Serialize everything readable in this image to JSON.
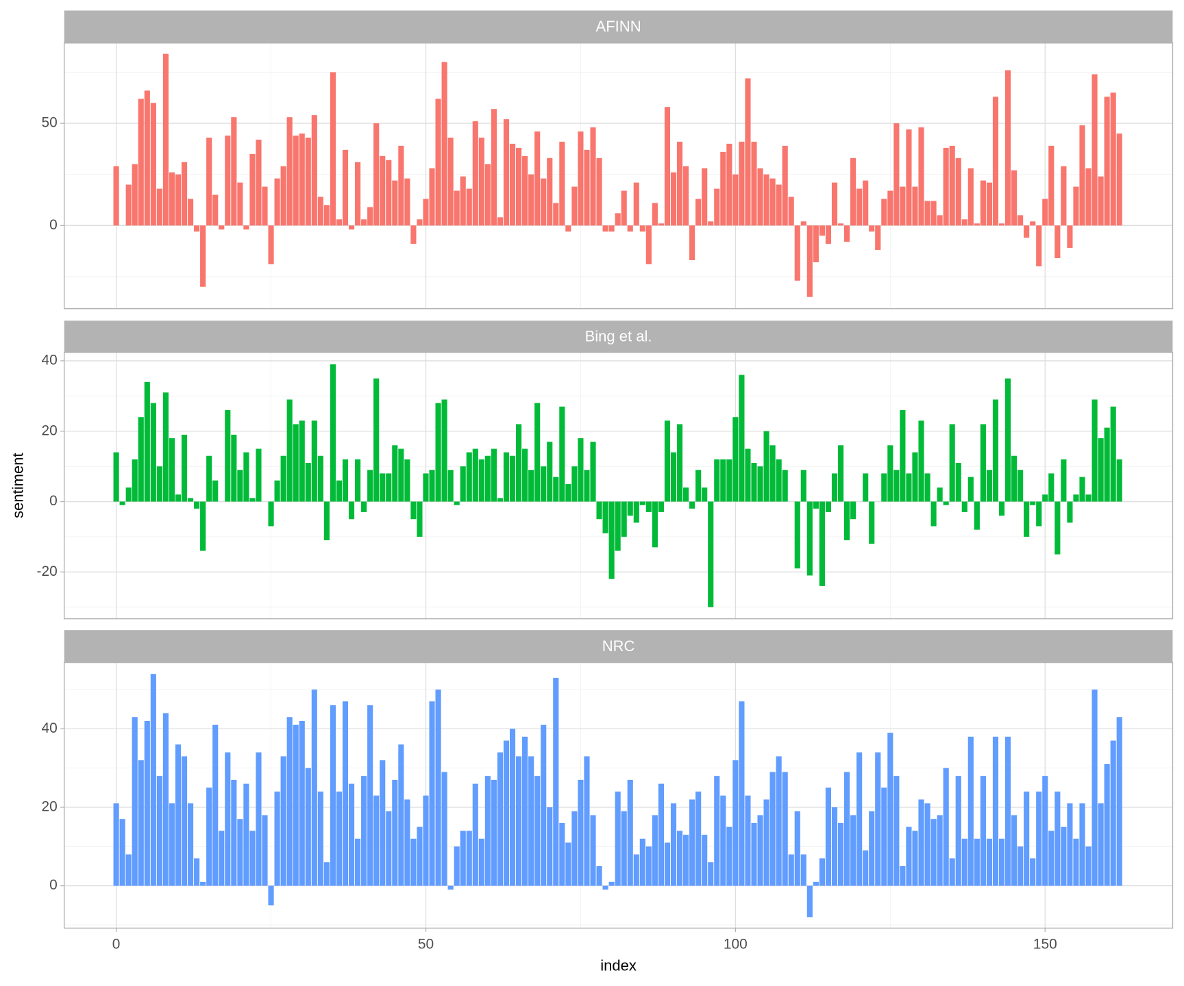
{
  "chart_data": [
    {
      "type": "bar",
      "title": "AFINN",
      "color": "#F8766D",
      "x": [
        0,
        1,
        2,
        3,
        4,
        5,
        6,
        7,
        8,
        9,
        10,
        11,
        12,
        13,
        14,
        15,
        16,
        17,
        18,
        19,
        20,
        21,
        22,
        23,
        24,
        25,
        26,
        27,
        28,
        29,
        30,
        31,
        32,
        33,
        34,
        35,
        36,
        37,
        38,
        39,
        40,
        41,
        42,
        43,
        44,
        45,
        46,
        47,
        48,
        49,
        50,
        51,
        52,
        53,
        54,
        55,
        56,
        57,
        58,
        59,
        60,
        61,
        62,
        63,
        64,
        65,
        66,
        67,
        68,
        69,
        70,
        71,
        72,
        73,
        74,
        75,
        76,
        77,
        78,
        79,
        80,
        81,
        82,
        83,
        84,
        85,
        86,
        87,
        88,
        89,
        90,
        91,
        92,
        93,
        94,
        95,
        96,
        97,
        98,
        99,
        100,
        101,
        102,
        103,
        104,
        105,
        106,
        107,
        108,
        109,
        110,
        111,
        112,
        113,
        114,
        115,
        116,
        117,
        118,
        119,
        120,
        121,
        122,
        123,
        124,
        125,
        126,
        127,
        128,
        129,
        130,
        131,
        132,
        133,
        134,
        135,
        136,
        137,
        138,
        139,
        140,
        141,
        142,
        143,
        144,
        145,
        146,
        147,
        148,
        149,
        150,
        151,
        152,
        153,
        154,
        155,
        156,
        157,
        158,
        159,
        160,
        161,
        162
      ],
      "values": [
        29,
        0,
        20,
        30,
        62,
        66,
        60,
        18,
        84,
        26,
        25,
        31,
        13,
        -3,
        -30,
        43,
        15,
        -2,
        44,
        53,
        21,
        -2,
        35,
        42,
        19,
        -19,
        23,
        29,
        53,
        44,
        45,
        43,
        54,
        14,
        10,
        75,
        3,
        37,
        -2,
        31,
        3,
        9,
        50,
        34,
        32,
        22,
        39,
        23,
        -9,
        3,
        13,
        28,
        62,
        80,
        43,
        17,
        24,
        18,
        51,
        43,
        30,
        57,
        4,
        52,
        40,
        38,
        34,
        25,
        46,
        23,
        33,
        11,
        41,
        -3,
        19,
        46,
        37,
        48,
        33,
        -3,
        -3,
        6,
        17,
        -3,
        21,
        -3,
        -19,
        11,
        1,
        58,
        26,
        41,
        29,
        -17,
        13,
        28,
        2,
        18,
        36,
        40,
        25,
        41,
        72,
        41,
        28,
        25,
        23,
        20,
        39,
        14,
        -27,
        2,
        -35,
        -18,
        -5,
        -9,
        21,
        1,
        -8,
        33,
        18,
        22,
        -3,
        -12,
        13,
        17,
        50,
        19,
        47,
        19,
        48,
        12,
        12,
        5,
        38,
        39,
        33,
        3,
        28,
        1,
        22,
        21,
        63,
        1,
        76,
        27,
        5,
        -6,
        2,
        -20,
        13,
        39,
        -16,
        29,
        -11,
        19,
        49,
        28,
        74,
        24,
        63,
        65,
        45
      ],
      "ylim": [
        -40.7,
        89.3
      ],
      "yticks": [
        0,
        50
      ],
      "grid": true
    },
    {
      "type": "bar",
      "title": "Bing et al.",
      "color": "#00BA38",
      "ylabel": "sentiment",
      "x": [
        0,
        1,
        2,
        3,
        4,
        5,
        6,
        7,
        8,
        9,
        10,
        11,
        12,
        13,
        14,
        15,
        16,
        17,
        18,
        19,
        20,
        21,
        22,
        23,
        24,
        25,
        26,
        27,
        28,
        29,
        30,
        31,
        32,
        33,
        34,
        35,
        36,
        37,
        38,
        39,
        40,
        41,
        42,
        43,
        44,
        45,
        46,
        47,
        48,
        49,
        50,
        51,
        52,
        53,
        54,
        55,
        56,
        57,
        58,
        59,
        60,
        61,
        62,
        63,
        64,
        65,
        66,
        67,
        68,
        69,
        70,
        71,
        72,
        73,
        74,
        75,
        76,
        77,
        78,
        79,
        80,
        81,
        82,
        83,
        84,
        85,
        86,
        87,
        88,
        89,
        90,
        91,
        92,
        93,
        94,
        95,
        96,
        97,
        98,
        99,
        100,
        101,
        102,
        103,
        104,
        105,
        106,
        107,
        108,
        109,
        110,
        111,
        112,
        113,
        114,
        115,
        116,
        117,
        118,
        119,
        120,
        121,
        122,
        123,
        124,
        125,
        126,
        127,
        128,
        129,
        130,
        131,
        132,
        133,
        134,
        135,
        136,
        137,
        138,
        139,
        140,
        141,
        142,
        143,
        144,
        145,
        146,
        147,
        148,
        149,
        150,
        151,
        152,
        153,
        154,
        155,
        156,
        157,
        158,
        159,
        160,
        161,
        162
      ],
      "values": [
        14,
        -1,
        4,
        12,
        24,
        34,
        28,
        10,
        31,
        18,
        2,
        19,
        1,
        -2,
        -14,
        13,
        6,
        0,
        26,
        19,
        9,
        14,
        1,
        15,
        0,
        -7,
        6,
        13,
        29,
        22,
        23,
        11,
        23,
        13,
        -11,
        39,
        6,
        12,
        -5,
        12,
        -3,
        9,
        35,
        8,
        8,
        16,
        15,
        12,
        -5,
        -10,
        8,
        9,
        28,
        29,
        9,
        -1,
        10,
        14,
        15,
        12,
        13,
        15,
        1,
        14,
        13,
        22,
        15,
        9,
        28,
        10,
        17,
        7,
        27,
        5,
        10,
        18,
        9,
        17,
        -5,
        -9,
        -22,
        -14,
        -10,
        -4,
        -6,
        -1,
        -3,
        -13,
        -3,
        23,
        14,
        22,
        4,
        -2,
        9,
        4,
        -30,
        12,
        12,
        12,
        24,
        36,
        15,
        11,
        10,
        20,
        16,
        12,
        9,
        0,
        -19,
        9,
        -21,
        -2,
        -24,
        -3,
        8,
        16,
        -11,
        -5,
        0,
        8,
        -12,
        0,
        8,
        16,
        9,
        26,
        8,
        14,
        23,
        8,
        -7,
        4,
        -1,
        22,
        11,
        -3,
        7,
        -8,
        22,
        9,
        29,
        -4,
        35,
        13,
        9,
        -10,
        -1,
        -7,
        2,
        8,
        -15,
        12,
        -6,
        2,
        7,
        2,
        29,
        18,
        21,
        27,
        12
      ],
      "ylim": [
        -33.3,
        42.4
      ],
      "yticks": [
        -20,
        0,
        20,
        40
      ],
      "grid": true
    },
    {
      "type": "bar",
      "title": "NRC",
      "color": "#619CFF",
      "xlabel": "index",
      "x": [
        0,
        1,
        2,
        3,
        4,
        5,
        6,
        7,
        8,
        9,
        10,
        11,
        12,
        13,
        14,
        15,
        16,
        17,
        18,
        19,
        20,
        21,
        22,
        23,
        24,
        25,
        26,
        27,
        28,
        29,
        30,
        31,
        32,
        33,
        34,
        35,
        36,
        37,
        38,
        39,
        40,
        41,
        42,
        43,
        44,
        45,
        46,
        47,
        48,
        49,
        50,
        51,
        52,
        53,
        54,
        55,
        56,
        57,
        58,
        59,
        60,
        61,
        62,
        63,
        64,
        65,
        66,
        67,
        68,
        69,
        70,
        71,
        72,
        73,
        74,
        75,
        76,
        77,
        78,
        79,
        80,
        81,
        82,
        83,
        84,
        85,
        86,
        87,
        88,
        89,
        90,
        91,
        92,
        93,
        94,
        95,
        96,
        97,
        98,
        99,
        100,
        101,
        102,
        103,
        104,
        105,
        106,
        107,
        108,
        109,
        110,
        111,
        112,
        113,
        114,
        115,
        116,
        117,
        118,
        119,
        120,
        121,
        122,
        123,
        124,
        125,
        126,
        127,
        128,
        129,
        130,
        131,
        132,
        133,
        134,
        135,
        136,
        137,
        138,
        139,
        140,
        141,
        142,
        143,
        144,
        145,
        146,
        147,
        148,
        149,
        150,
        151,
        152,
        153,
        154,
        155,
        156,
        157,
        158,
        159,
        160,
        161,
        162
      ],
      "values": [
        21,
        17,
        8,
        43,
        32,
        42,
        54,
        28,
        44,
        21,
        36,
        33,
        21,
        7,
        1,
        25,
        41,
        14,
        34,
        27,
        17,
        26,
        14,
        34,
        18,
        -5,
        24,
        33,
        43,
        41,
        42,
        30,
        50,
        24,
        6,
        46,
        24,
        47,
        26,
        12,
        28,
        46,
        23,
        32,
        19,
        27,
        36,
        22,
        12,
        15,
        23,
        47,
        50,
        29,
        -1,
        10,
        14,
        14,
        26,
        12,
        28,
        27,
        34,
        37,
        40,
        33,
        38,
        33,
        28,
        41,
        20,
        53,
        16,
        11,
        19,
        27,
        33,
        18,
        5,
        -1,
        1,
        24,
        19,
        27,
        8,
        12,
        10,
        18,
        26,
        11,
        21,
        14,
        13,
        22,
        24,
        13,
        6,
        28,
        23,
        15,
        32,
        47,
        23,
        16,
        18,
        22,
        29,
        33,
        29,
        8,
        19,
        8,
        -8,
        1,
        7,
        25,
        20,
        16,
        29,
        18,
        34,
        9,
        19,
        34,
        25,
        39,
        28,
        5,
        15,
        14,
        22,
        21,
        17,
        18,
        30,
        7,
        28,
        12,
        38,
        12,
        28,
        12,
        38,
        12,
        38,
        18,
        10,
        24,
        7,
        24,
        28,
        14,
        24,
        15,
        21,
        12,
        21,
        10,
        50,
        21,
        31,
        37,
        43
      ],
      "ylim": [
        -10.8,
        56.9
      ],
      "yticks": [
        0,
        20,
        40
      ],
      "grid": true,
      "xlim": [
        -8.4,
        170.6
      ],
      "xticks": [
        0,
        50,
        100,
        150
      ]
    }
  ]
}
